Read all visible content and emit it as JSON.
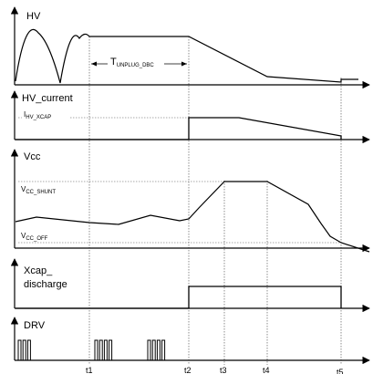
{
  "panels": {
    "hv": {
      "label": "HV",
      "annotation": "T",
      "annotation_sub": "UNPLUG_DBC"
    },
    "hv_current": {
      "label": "HV_current",
      "level_label": "I",
      "level_sub": "HV_XCAP"
    },
    "vcc": {
      "label": "Vcc",
      "shunt_label": "V",
      "shunt_sub": "CC_SHUNT",
      "off_label": "V",
      "off_sub": "CC_OFF"
    },
    "xcap": {
      "label_line1": "Xcap_",
      "label_line2": "discharge"
    },
    "drv": {
      "label": "DRV"
    }
  },
  "time_markers": [
    "t1",
    "t2",
    "t3",
    "t4",
    "t5"
  ]
}
